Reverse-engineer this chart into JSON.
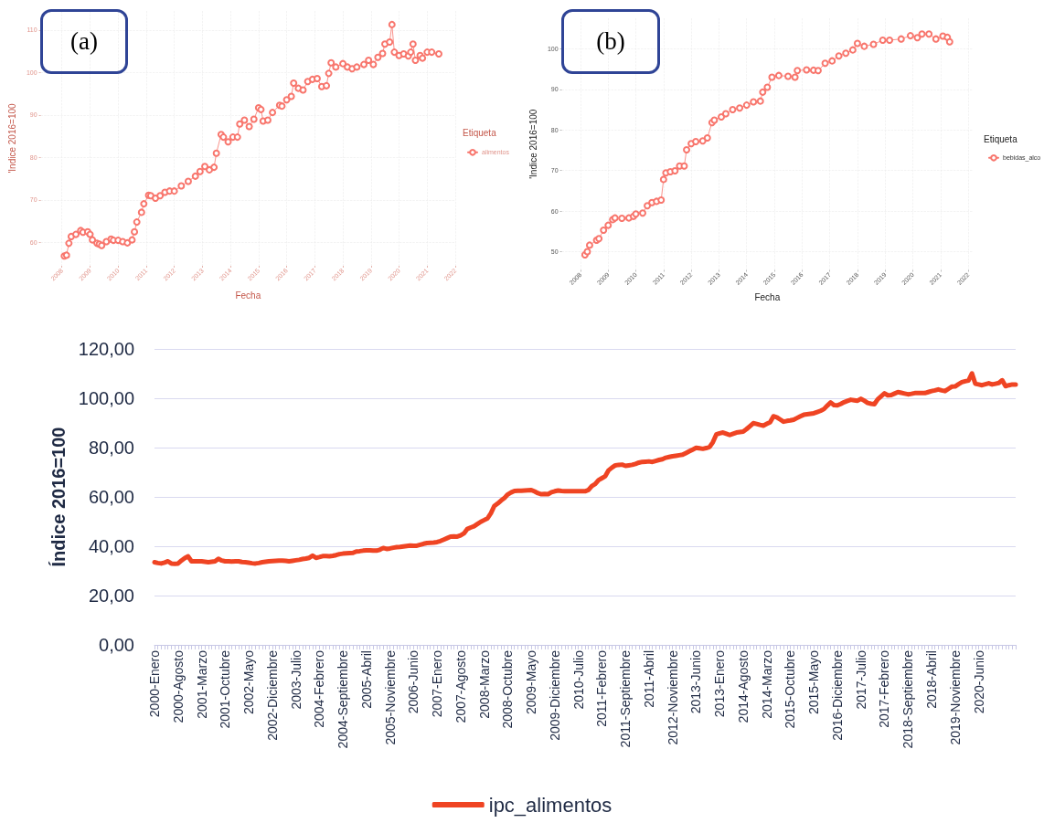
{
  "chart_data": [
    {
      "type": "line",
      "xlabel": "Fecha",
      "ylabel": "'Indice 2016=100",
      "legend_title": "Etiqueta",
      "legend": "right",
      "annotations": [
        "(a)"
      ],
      "marker": "circle",
      "line_style": "solid",
      "grid": true,
      "xlim": [
        "2007-04",
        "2022-01"
      ],
      "xticks": [
        "2008",
        "2009",
        "2010",
        "2011",
        "2012",
        "2013",
        "2014",
        "2015",
        "2016",
        "2017",
        "2018",
        "2019",
        "2020",
        "2021",
        "2022"
      ],
      "ylim": [
        54.5,
        114.5
      ],
      "yticks": [
        60,
        70,
        80,
        90,
        100,
        110
      ],
      "series": [
        {
          "name": "alimentos",
          "color": "#f8766d",
          "x": [
            "2008-02",
            "2008-03",
            "2008-04",
            "2008-05",
            "2008-07",
            "2008-09",
            "2008-10",
            "2008-12",
            "2009-01",
            "2009-02",
            "2009-04",
            "2009-05",
            "2009-06",
            "2009-08",
            "2009-10",
            "2009-11",
            "2010-01",
            "2010-03",
            "2010-05",
            "2010-07",
            "2010-08",
            "2010-09",
            "2010-11",
            "2010-12",
            "2011-02",
            "2011-03",
            "2011-05",
            "2011-07",
            "2011-09",
            "2011-11",
            "2012-01",
            "2012-04",
            "2012-07",
            "2012-10",
            "2012-12",
            "2013-02",
            "2013-04",
            "2013-06",
            "2013-07",
            "2013-09",
            "2013-10",
            "2013-12",
            "2014-02",
            "2014-04",
            "2014-05",
            "2014-07",
            "2014-09",
            "2014-11",
            "2015-01",
            "2015-02",
            "2015-03",
            "2015-05",
            "2015-07",
            "2015-10",
            "2015-11",
            "2016-01",
            "2016-03",
            "2016-04",
            "2016-06",
            "2016-08",
            "2016-10",
            "2016-12",
            "2017-02",
            "2017-04",
            "2017-06",
            "2017-07",
            "2017-08",
            "2017-10",
            "2018-01",
            "2018-03",
            "2018-05",
            "2018-07",
            "2018-10",
            "2018-12",
            "2019-02",
            "2019-04",
            "2019-06",
            "2019-07",
            "2019-09",
            "2019-10",
            "2019-11",
            "2020-01",
            "2020-03",
            "2020-05",
            "2020-06",
            "2020-07",
            "2020-08",
            "2020-10",
            "2020-11",
            "2021-01",
            "2021-03",
            "2021-06"
          ],
          "values": [
            56.8,
            57.0,
            59.8,
            61.4,
            61.9,
            62.8,
            62.4,
            62.5,
            61.9,
            60.6,
            59.8,
            59.6,
            59.3,
            60.2,
            60.8,
            60.5,
            60.5,
            60.2,
            59.9,
            60.6,
            62.5,
            64.8,
            67.1,
            69.1,
            71.1,
            71.0,
            70.4,
            71.0,
            71.8,
            72.1,
            72.1,
            73.3,
            74.4,
            75.6,
            76.7,
            77.9,
            77.1,
            77.7,
            81.0,
            85.4,
            84.8,
            83.7,
            84.8,
            84.8,
            87.9,
            88.8,
            87.3,
            89.0,
            91.7,
            91.3,
            88.6,
            88.8,
            90.6,
            92.3,
            92.1,
            93.6,
            94.4,
            97.5,
            96.3,
            95.9,
            97.9,
            98.4,
            98.6,
            96.7,
            96.9,
            99.8,
            102.3,
            101.3,
            102.1,
            101.3,
            100.9,
            101.3,
            101.9,
            102.9,
            101.9,
            103.6,
            104.5,
            106.7,
            107.2,
            111.3,
            104.8,
            104.0,
            104.4,
            103.9,
            104.8,
            106.7,
            102.9,
            104.0,
            103.4,
            104.8,
            104.8,
            104.4
          ]
        }
      ]
    },
    {
      "type": "line",
      "xlabel": "Fecha",
      "ylabel": "'Indice 2016=100",
      "legend_title": "Etiqueta",
      "legend": "right",
      "annotations": [
        "(b)"
      ],
      "marker": "circle",
      "line_style": "solid",
      "grid": true,
      "xlim": [
        "2007-05",
        "2022-03"
      ],
      "xticks": [
        "2008",
        "2009",
        "2010",
        "2011",
        "2012",
        "2013",
        "2014",
        "2015",
        "2016",
        "2017",
        "2018",
        "2019",
        "2020",
        "2021",
        "2022"
      ],
      "ylim": [
        45.5,
        107.5
      ],
      "yticks": [
        50,
        60,
        70,
        80,
        90,
        100
      ],
      "series": [
        {
          "name": "bebidas_alco",
          "color": "#f8766d",
          "x": [
            "2008-03",
            "2008-04",
            "2008-05",
            "2008-08",
            "2008-09",
            "2008-11",
            "2009-01",
            "2009-03",
            "2009-04",
            "2009-07",
            "2009-10",
            "2009-12",
            "2010-01",
            "2010-04",
            "2010-06",
            "2010-08",
            "2010-10",
            "2010-12",
            "2011-01",
            "2011-02",
            "2011-04",
            "2011-06",
            "2011-08",
            "2011-10",
            "2011-11",
            "2012-01",
            "2012-03",
            "2012-06",
            "2012-08",
            "2012-10",
            "2012-11",
            "2013-02",
            "2013-04",
            "2013-07",
            "2013-10",
            "2014-01",
            "2014-04",
            "2014-07",
            "2014-08",
            "2014-10",
            "2014-12",
            "2015-03",
            "2015-07",
            "2015-10",
            "2015-11",
            "2016-03",
            "2016-06",
            "2016-08",
            "2016-11",
            "2017-02",
            "2017-05",
            "2017-08",
            "2017-11",
            "2018-01",
            "2018-04",
            "2018-08",
            "2018-12",
            "2019-03",
            "2019-08",
            "2019-12",
            "2020-03",
            "2020-05",
            "2020-08",
            "2020-11",
            "2021-02",
            "2021-04",
            "2021-05"
          ],
          "values": [
            49.2,
            50.0,
            51.6,
            52.8,
            53.2,
            55.3,
            56.5,
            57.9,
            58.3,
            58.2,
            58.3,
            58.7,
            59.3,
            59.5,
            61.3,
            62.1,
            62.4,
            62.7,
            67.8,
            69.4,
            69.7,
            69.9,
            71.1,
            71.1,
            75.1,
            76.6,
            77.1,
            77.3,
            78.0,
            81.8,
            82.4,
            83.2,
            84.0,
            85.0,
            85.4,
            86.1,
            86.9,
            87.1,
            89.3,
            90.5,
            93.0,
            93.4,
            93.2,
            93.0,
            94.6,
            94.8,
            94.7,
            94.6,
            96.4,
            97.0,
            98.2,
            98.9,
            99.7,
            101.3,
            100.6,
            101.1,
            102.1,
            102.1,
            102.4,
            103.2,
            102.7,
            103.6,
            103.6,
            102.4,
            103.1,
            102.8,
            101.7
          ]
        }
      ]
    },
    {
      "type": "line",
      "ylabel": "Índice 2016=100",
      "legend": "bottom",
      "line_style": "solid",
      "grid": "y",
      "ylim": [
        0,
        120
      ],
      "yticks": [
        {
          "value": 0,
          "label": "0,00"
        },
        {
          "value": 20,
          "label": "20,00"
        },
        {
          "value": 40,
          "label": "40,00"
        },
        {
          "value": 60,
          "label": "60,00"
        },
        {
          "value": 80,
          "label": "80,00"
        },
        {
          "value": 100,
          "label": "100,00"
        },
        {
          "value": 120,
          "label": "120,00"
        }
      ],
      "categories": [
        "2000-Enero",
        null,
        null,
        null,
        null,
        null,
        null,
        "2000-Agosto",
        null,
        null,
        null,
        null,
        null,
        null,
        "2001-Marzo",
        null,
        null,
        null,
        null,
        null,
        null,
        "2001-Octubre",
        null,
        null,
        null,
        null,
        null,
        null,
        "2002-Mayo",
        null,
        null,
        null,
        null,
        null,
        null,
        "2002-Diciembre",
        null,
        null,
        null,
        null,
        null,
        null,
        "2003-Julio",
        null,
        null,
        null,
        null,
        null,
        null,
        "2004-Febrero",
        null,
        null,
        null,
        null,
        null,
        null,
        "2004-Septiembre",
        null,
        null,
        null,
        null,
        null,
        null,
        "2005-Abril",
        null,
        null,
        null,
        null,
        null,
        null,
        "2005-Noviembre",
        null,
        null,
        null,
        null,
        null,
        null,
        "2006-Junio",
        null,
        null,
        null,
        null,
        null,
        null,
        "2007-Enero",
        null,
        null,
        null,
        null,
        null,
        null,
        "2007-Agosto",
        null,
        null,
        null,
        null,
        null,
        null,
        "2008-Marzo",
        null,
        null,
        null,
        null,
        null,
        null,
        "2008-Octubre",
        null,
        null,
        null,
        null,
        null,
        null,
        "2009-Mayo",
        null,
        null,
        null,
        null,
        null,
        null,
        "2009-Diciembre",
        null,
        null,
        null,
        null,
        null,
        null,
        "2010-Julio",
        null,
        null,
        null,
        null,
        null,
        null,
        "2011-Febrero",
        null,
        null,
        null,
        null,
        null,
        null,
        "2011-Septiembre",
        null,
        null,
        null,
        null,
        null,
        null,
        "2011-Abril",
        null,
        null,
        null,
        null,
        null,
        null,
        "2012-Noviembre",
        null,
        null,
        null,
        null,
        null,
        null,
        "2013-Junio",
        null,
        null,
        null,
        null,
        null,
        null,
        "2013-Enero",
        null,
        null,
        null,
        null,
        null,
        null,
        "2014-Agosto",
        null,
        null,
        null,
        null,
        null,
        null,
        "2014-Marzo",
        null,
        null,
        null,
        null,
        null,
        null,
        "2015-Octubre",
        null,
        null,
        null,
        null,
        null,
        null,
        "2015-Mayo",
        null,
        null,
        null,
        null,
        null,
        null,
        "2016-Diciembre",
        null,
        null,
        null,
        null,
        null,
        null,
        "2017-Julio",
        null,
        null,
        null,
        null,
        null,
        null,
        "2017-Febrero",
        null,
        null,
        null,
        null,
        null,
        null,
        "2018-Septiembre",
        null,
        null,
        null,
        null,
        null,
        null,
        "2018-Abril",
        null,
        null,
        null,
        null,
        null,
        null,
        "2019-Noviembre",
        null,
        null,
        null,
        null,
        null,
        null,
        "2020-Junio",
        null,
        null,
        null,
        null,
        null,
        null,
        null,
        null,
        null,
        null,
        null
      ],
      "series": [
        {
          "name": "ipc_alimentos",
          "color": "#ef4423",
          "values": [
            33.5,
            33.2,
            33.0,
            33.4,
            33.9,
            33.0,
            32.9,
            33.0,
            34.2,
            35.2,
            35.9,
            33.9,
            33.9,
            33.9,
            33.9,
            33.7,
            33.5,
            33.7,
            33.9,
            34.9,
            34.2,
            33.9,
            33.9,
            33.8,
            33.9,
            33.9,
            33.6,
            33.5,
            33.3,
            33.1,
            33.0,
            33.2,
            33.5,
            33.7,
            33.9,
            34.0,
            34.1,
            34.2,
            34.2,
            34.1,
            33.9,
            34.1,
            34.3,
            34.5,
            34.8,
            35.0,
            35.3,
            36.2,
            35.3,
            35.6,
            36.0,
            36.0,
            35.9,
            36.1,
            36.4,
            36.8,
            37.0,
            37.1,
            37.2,
            37.3,
            37.9,
            38.0,
            38.2,
            38.3,
            38.3,
            38.2,
            38.2,
            38.6,
            39.3,
            38.9,
            39.1,
            39.4,
            39.6,
            39.7,
            39.9,
            40.1,
            40.3,
            40.2,
            40.2,
            40.6,
            41.0,
            41.3,
            41.4,
            41.5,
            41.7,
            42.1,
            42.7,
            43.3,
            43.9,
            44.0,
            43.9,
            44.4,
            45.2,
            47.0,
            47.6,
            48.1,
            49.0,
            49.9,
            50.6,
            51.3,
            53.4,
            56.3,
            57.3,
            58.5,
            59.5,
            61.0,
            61.8,
            62.4,
            62.5,
            62.5,
            62.6,
            62.7,
            62.8,
            62.2,
            61.5,
            61.1,
            61.2,
            61.1,
            61.9,
            62.3,
            62.6,
            62.4,
            62.3,
            62.3,
            62.3,
            62.3,
            62.3,
            62.3,
            62.3,
            62.8,
            64.4,
            65.2,
            66.8,
            67.6,
            68.4,
            70.8,
            71.9,
            72.8,
            73.0,
            73.1,
            72.6,
            72.8,
            73.0,
            73.4,
            73.9,
            74.2,
            74.3,
            74.4,
            74.2,
            74.6,
            75.0,
            75.3,
            75.9,
            76.2,
            76.5,
            76.7,
            76.9,
            77.1,
            77.8,
            78.5,
            79.2,
            79.9,
            79.7,
            79.5,
            79.8,
            80.2,
            82.2,
            85.3,
            85.8,
            86.1,
            85.6,
            85.1,
            85.6,
            86.1,
            86.3,
            86.5,
            87.5,
            88.7,
            89.9,
            89.6,
            89.2,
            88.9,
            89.6,
            90.3,
            92.7,
            92.3,
            91.4,
            90.5,
            90.8,
            91.0,
            91.3,
            92.0,
            92.7,
            93.3,
            93.5,
            93.7,
            93.9,
            94.4,
            94.9,
            95.6,
            97.0,
            98.3,
            97.2,
            97.1,
            97.7,
            98.4,
            98.9,
            99.4,
            99.2,
            99.0,
            99.8,
            99.0,
            98.1,
            97.8,
            97.6,
            99.6,
            100.8,
            102.0,
            101.2,
            101.3,
            101.9,
            102.5,
            102.2,
            101.9,
            101.6,
            101.8,
            102.1,
            102.1,
            102.1,
            102.1,
            102.5,
            102.9,
            103.2,
            103.6,
            103.2,
            102.9,
            103.8,
            104.7,
            104.8,
            105.7,
            106.5,
            106.9,
            107.2,
            110.1,
            105.9,
            105.6,
            105.3,
            105.7,
            106.1,
            105.6,
            105.9,
            106.2,
            107.3,
            104.9,
            105.3,
            105.6,
            105.6
          ]
        }
      ]
    }
  ]
}
